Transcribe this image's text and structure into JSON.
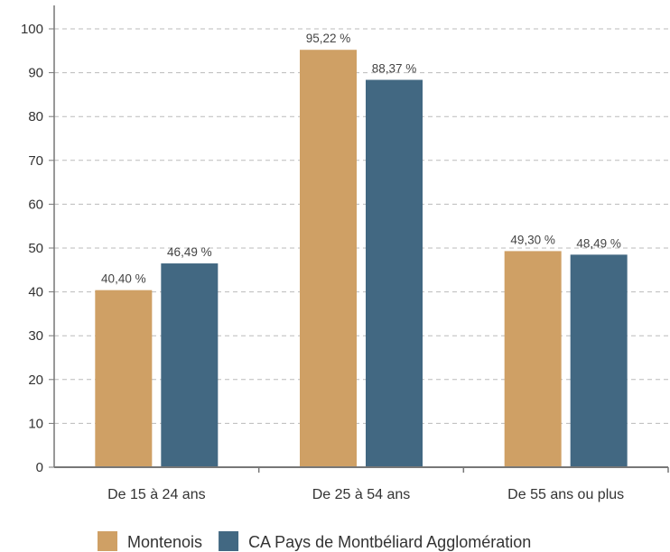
{
  "chart_data": {
    "type": "bar",
    "categories": [
      "De 15 à 24 ans",
      "De 25 à 54 ans",
      "De 55 ans ou plus"
    ],
    "series": [
      {
        "name": "Montenois",
        "values": [
          40.4,
          95.22,
          49.3
        ],
        "labels": [
          "40,40 %",
          "95,22 %",
          "49,30 %"
        ],
        "color": "#CFA065"
      },
      {
        "name": "CA Pays de Montbéliard Agglomération",
        "values": [
          46.49,
          88.37,
          48.49
        ],
        "labels": [
          "46,49 %",
          "88,37 %",
          "48,49 %"
        ],
        "color": "#426882"
      }
    ],
    "ylim": [
      0,
      100
    ],
    "yticks": [
      "0",
      "10",
      "20",
      "30",
      "40",
      "50",
      "60",
      "70",
      "80",
      "90",
      "100"
    ],
    "grid": true,
    "legend_position": "bottom",
    "axis_color": "#777777",
    "grid_color": "#BBBBBB"
  }
}
